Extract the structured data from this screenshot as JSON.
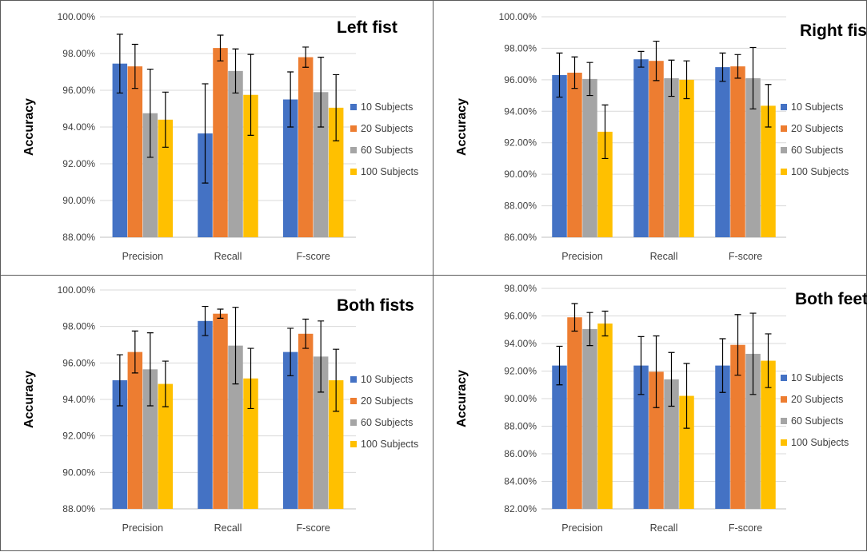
{
  "series_names": [
    "10 Subjects",
    "20 Subjects",
    "60 Subjects",
    "100 Subjects"
  ],
  "series_colors": [
    "#4472c4",
    "#ed7d31",
    "#a5a5a5",
    "#ffc000"
  ],
  "chart_data": [
    {
      "type": "bar",
      "title": "Left fist",
      "ylabel": "Accuracy",
      "xlabel": "",
      "categories": [
        "Precision",
        "Recall",
        "F-score"
      ],
      "ylim": [
        88,
        100
      ],
      "ytick_step": 2,
      "yticks": [
        "88.00%",
        "90.00%",
        "92.00%",
        "94.00%",
        "96.00%",
        "98.00%",
        "100.00%"
      ],
      "series": [
        {
          "name": "10 Subjects",
          "values": [
            97.45,
            93.65,
            95.5
          ],
          "errors": [
            1.6,
            2.7,
            1.5
          ]
        },
        {
          "name": "20 Subjects",
          "values": [
            97.3,
            98.3,
            97.8
          ],
          "errors": [
            1.2,
            0.7,
            0.55
          ]
        },
        {
          "name": "60 Subjects",
          "values": [
            94.75,
            97.05,
            95.9
          ],
          "errors": [
            2.4,
            1.2,
            1.9
          ]
        },
        {
          "name": "100 Subjects",
          "values": [
            94.4,
            95.75,
            95.05
          ],
          "errors": [
            1.5,
            2.2,
            1.8
          ]
        }
      ]
    },
    {
      "type": "bar",
      "title": "Right fist",
      "ylabel": "Accuracy",
      "xlabel": "",
      "categories": [
        "Precision",
        "Recall",
        "F-score"
      ],
      "ylim": [
        86,
        100
      ],
      "ytick_step": 2,
      "yticks": [
        "86.00%",
        "88.00%",
        "90.00%",
        "92.00%",
        "94.00%",
        "96.00%",
        "98.00%",
        "100.00%"
      ],
      "series": [
        {
          "name": "10 Subjects",
          "values": [
            96.3,
            97.3,
            96.8
          ],
          "errors": [
            1.4,
            0.5,
            0.9
          ]
        },
        {
          "name": "20 Subjects",
          "values": [
            96.45,
            97.2,
            96.85
          ],
          "errors": [
            1.0,
            1.25,
            0.75
          ]
        },
        {
          "name": "60 Subjects",
          "values": [
            96.05,
            96.1,
            96.1
          ],
          "errors": [
            1.05,
            1.15,
            1.95
          ]
        },
        {
          "name": "100 Subjects",
          "values": [
            92.7,
            96.0,
            94.35
          ],
          "errors": [
            1.7,
            1.2,
            1.35
          ]
        }
      ]
    },
    {
      "type": "bar",
      "title": "Both fists",
      "ylabel": "Accuracy",
      "xlabel": "",
      "categories": [
        "Precision",
        "Recall",
        "F-score"
      ],
      "ylim": [
        88,
        100
      ],
      "ytick_step": 2,
      "yticks": [
        "88.00%",
        "90.00%",
        "92.00%",
        "94.00%",
        "96.00%",
        "98.00%",
        "100.00%"
      ],
      "series": [
        {
          "name": "10 Subjects",
          "values": [
            95.05,
            98.3,
            96.6
          ],
          "errors": [
            1.4,
            0.8,
            1.3
          ]
        },
        {
          "name": "20 Subjects",
          "values": [
            96.6,
            98.7,
            97.6
          ],
          "errors": [
            1.15,
            0.25,
            0.8
          ]
        },
        {
          "name": "60 Subjects",
          "values": [
            95.65,
            96.95,
            96.35
          ],
          "errors": [
            2.0,
            2.1,
            1.95
          ]
        },
        {
          "name": "100 Subjects",
          "values": [
            94.85,
            95.15,
            95.05
          ],
          "errors": [
            1.25,
            1.65,
            1.7
          ]
        }
      ]
    },
    {
      "type": "bar",
      "title": "Both feet",
      "ylabel": "Accuracy",
      "xlabel": "",
      "categories": [
        "Precision",
        "Recall",
        "F-score"
      ],
      "ylim": [
        82,
        98
      ],
      "ytick_step": 2,
      "yticks": [
        "82.00%",
        "84.00%",
        "86.00%",
        "88.00%",
        "90.00%",
        "92.00%",
        "94.00%",
        "96.00%",
        "98.00%"
      ],
      "series": [
        {
          "name": "10 Subjects",
          "values": [
            92.4,
            92.4,
            92.4
          ],
          "errors": [
            1.4,
            2.1,
            1.95
          ]
        },
        {
          "name": "20 Subjects",
          "values": [
            95.9,
            91.95,
            93.9
          ],
          "errors": [
            1.0,
            2.6,
            2.2
          ]
        },
        {
          "name": "60 Subjects",
          "values": [
            95.05,
            91.4,
            93.25
          ],
          "errors": [
            1.2,
            1.95,
            2.95
          ]
        },
        {
          "name": "100 Subjects",
          "values": [
            95.45,
            90.2,
            92.75
          ],
          "errors": [
            0.9,
            2.35,
            1.95
          ]
        }
      ]
    }
  ]
}
